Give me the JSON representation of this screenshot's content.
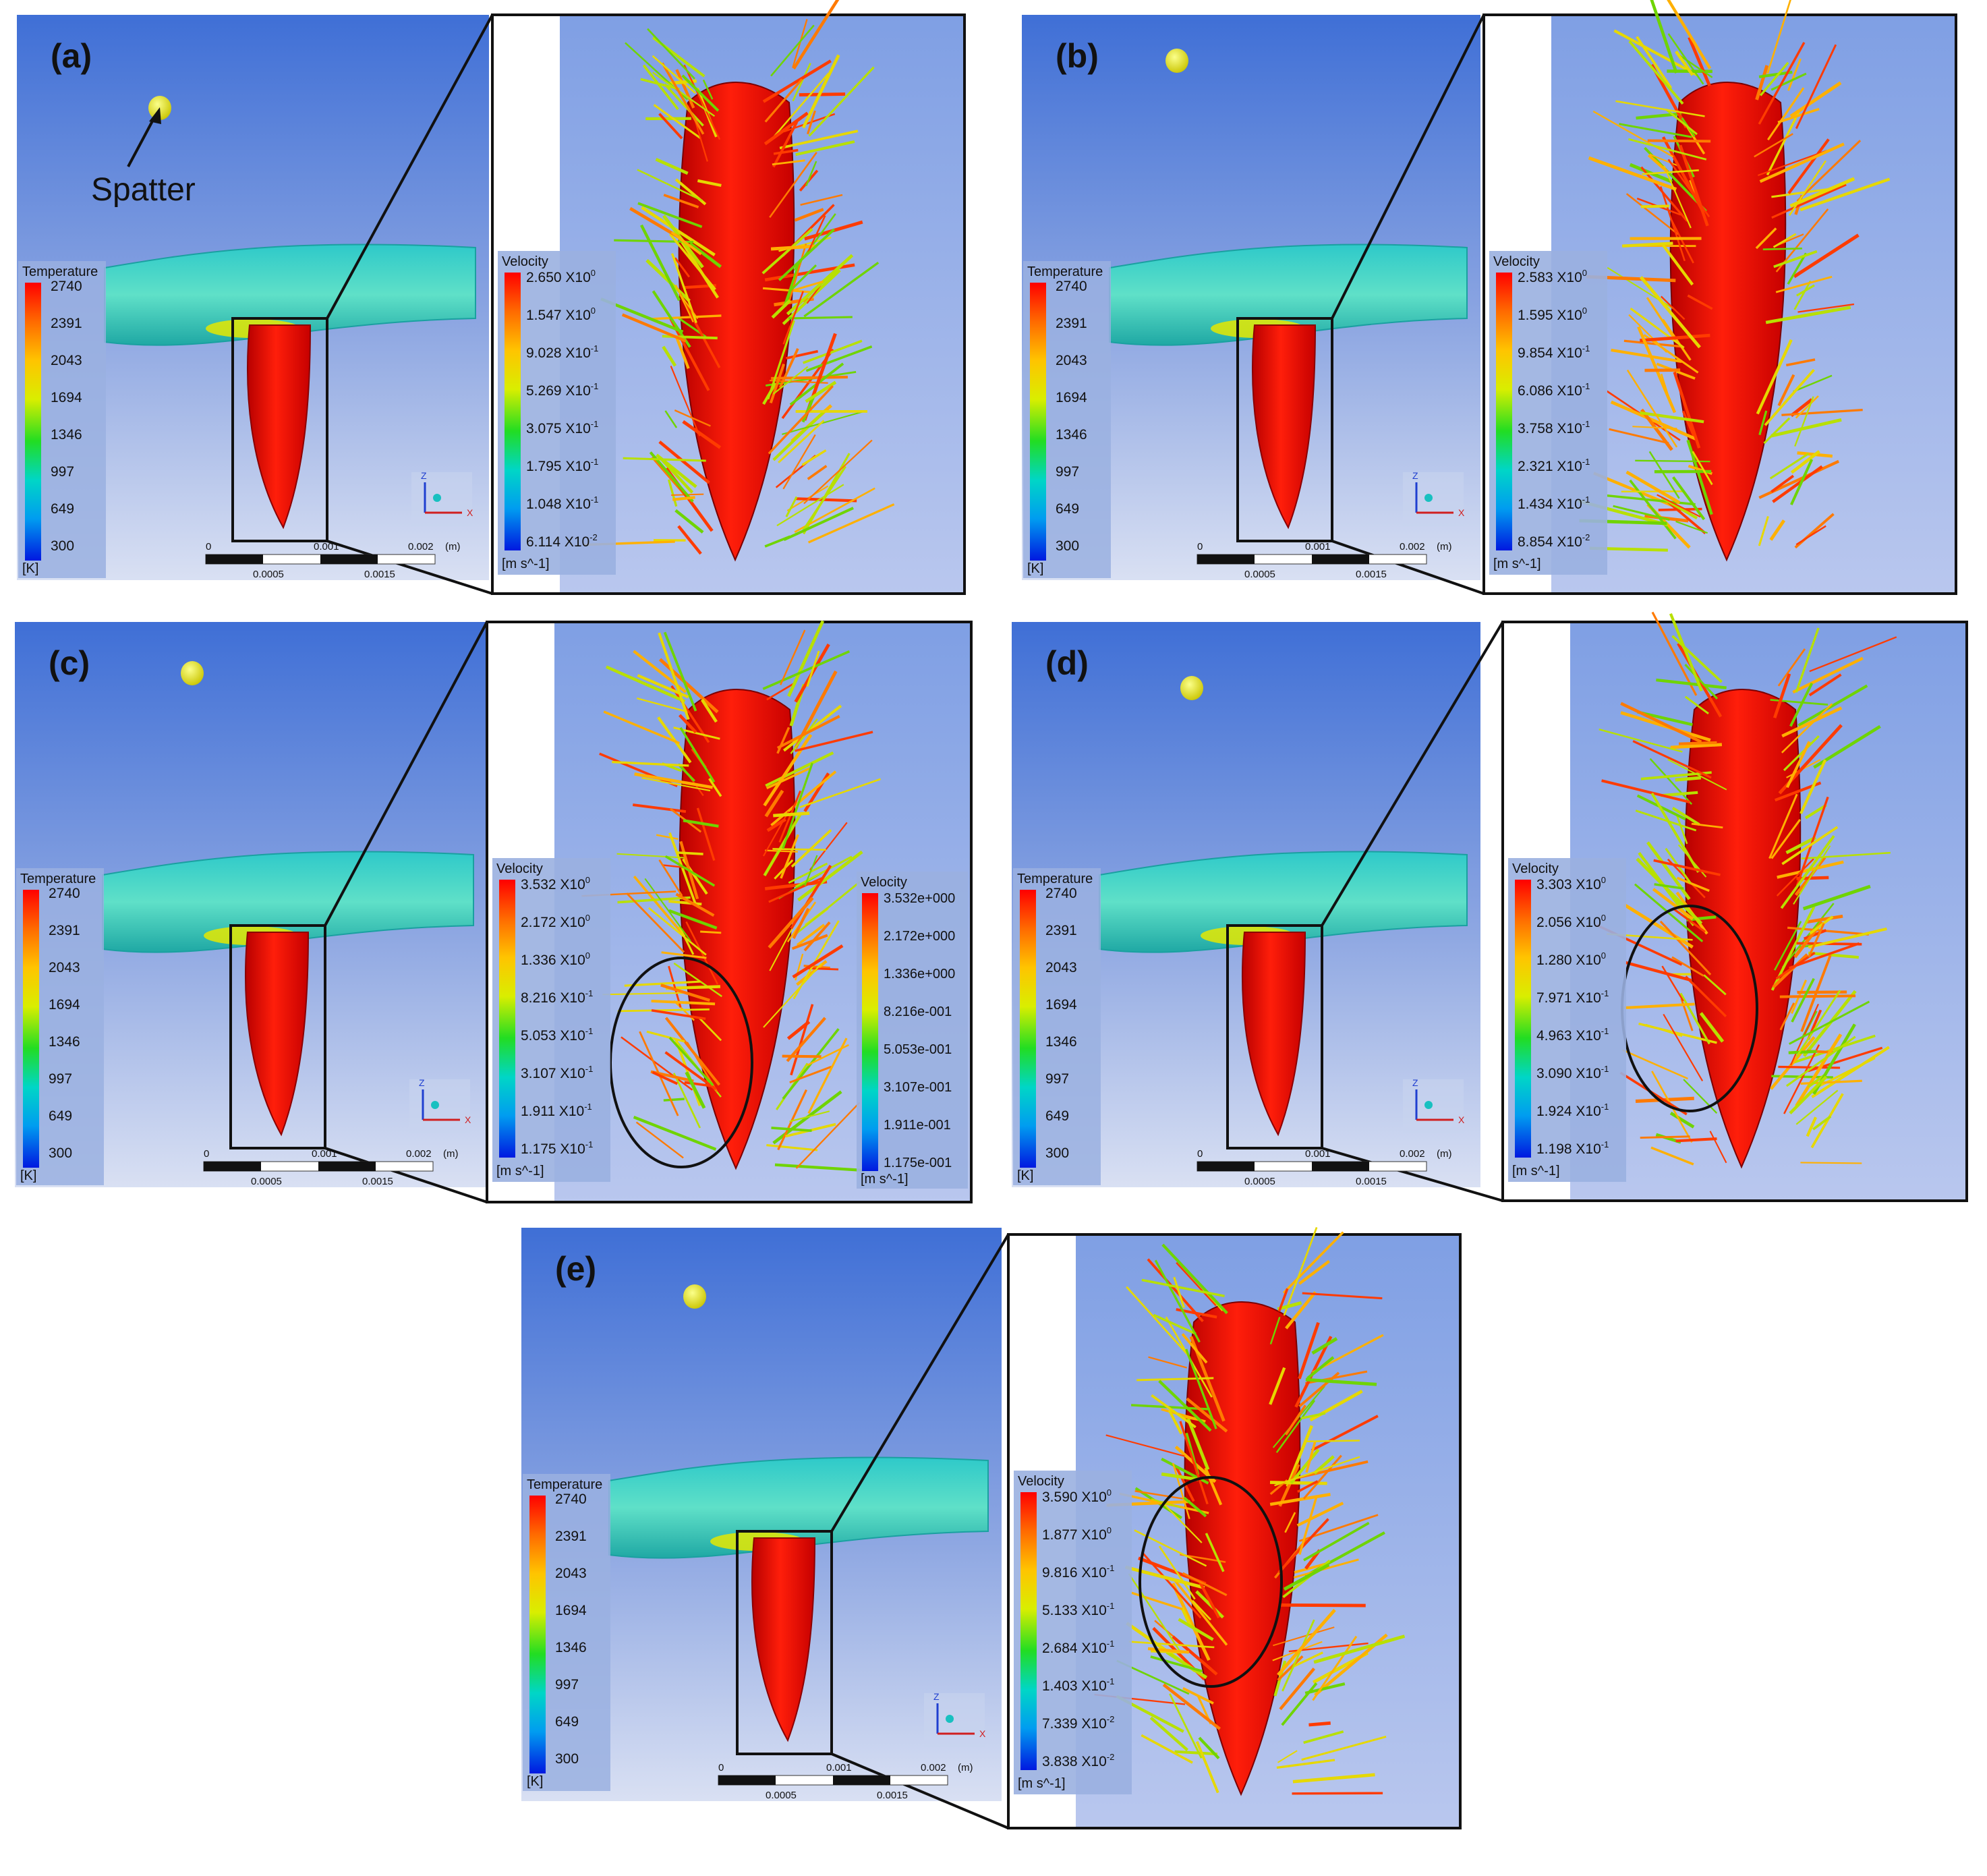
{
  "annotation": {
    "spatter_label": "Spatter"
  },
  "scale_bar": {
    "top_ticks": [
      "0",
      "0.001",
      "0.002"
    ],
    "unit": "(m)",
    "bottom_ticks": [
      "0.0005",
      "0.0015"
    ]
  },
  "axis_triad": {
    "z": "Z",
    "x": "X"
  },
  "panels": [
    {
      "id": "a",
      "label": "(a)",
      "temperature_legend": {
        "title": "Temperature",
        "ticks": [
          "2740",
          "2391",
          "2043",
          "1694",
          "1346",
          "997",
          "649",
          "300"
        ],
        "unit": "[K]"
      },
      "velocity_legend": {
        "title": "Velocity",
        "ticks": [
          {
            "m": "2.650",
            "e": "0"
          },
          {
            "m": "1.547",
            "e": "0"
          },
          {
            "m": "9.028",
            "e": "-1"
          },
          {
            "m": "5.269",
            "e": "-1"
          },
          {
            "m": "3.075",
            "e": "-1"
          },
          {
            "m": "1.795",
            "e": "-1"
          },
          {
            "m": "1.048",
            "e": "-1"
          },
          {
            "m": "6.114",
            "e": "-2"
          }
        ],
        "unit": "[m s^-1]"
      }
    },
    {
      "id": "b",
      "label": "(b)",
      "temperature_legend": {
        "title": "Temperature",
        "ticks": [
          "2740",
          "2391",
          "2043",
          "1694",
          "1346",
          "997",
          "649",
          "300"
        ],
        "unit": "[K]"
      },
      "velocity_legend": {
        "title": "Velocity",
        "ticks": [
          {
            "m": "2.583",
            "e": "0"
          },
          {
            "m": "1.595",
            "e": "0"
          },
          {
            "m": "9.854",
            "e": "-1"
          },
          {
            "m": "6.086",
            "e": "-1"
          },
          {
            "m": "3.758",
            "e": "-1"
          },
          {
            "m": "2.321",
            "e": "-1"
          },
          {
            "m": "1.434",
            "e": "-1"
          },
          {
            "m": "8.854",
            "e": "-2"
          }
        ],
        "unit": "[m s^-1]"
      }
    },
    {
      "id": "c",
      "label": "(c)",
      "temperature_legend": {
        "title": "Temperature",
        "ticks": [
          "2740",
          "2391",
          "2043",
          "1694",
          "1346",
          "997",
          "649",
          "300"
        ],
        "unit": "[K]"
      },
      "velocity_legend": {
        "title": "Velocity",
        "ticks": [
          {
            "m": "3.532",
            "e": "0"
          },
          {
            "m": "2.172",
            "e": "0"
          },
          {
            "m": "1.336",
            "e": "0"
          },
          {
            "m": "8.216",
            "e": "-1"
          },
          {
            "m": "5.053",
            "e": "-1"
          },
          {
            "m": "3.107",
            "e": "-1"
          },
          {
            "m": "1.911",
            "e": "-1"
          },
          {
            "m": "1.175",
            "e": "-1"
          }
        ],
        "unit": "[m s^-1]"
      },
      "velocity_legend_sci": {
        "title": "Velocity",
        "ticks": [
          "3.532e+000",
          "2.172e+000",
          "1.336e+000",
          "8.216e-001",
          "5.053e-001",
          "3.107e-001",
          "1.911e-001",
          "1.175e-001"
        ],
        "unit": "[m s^-1]"
      }
    },
    {
      "id": "d",
      "label": "(d)",
      "temperature_legend": {
        "title": "Temperature",
        "ticks": [
          "2740",
          "2391",
          "2043",
          "1694",
          "1346",
          "997",
          "649",
          "300"
        ],
        "unit": "[K]"
      },
      "velocity_legend": {
        "title": "Velocity",
        "ticks": [
          {
            "m": "3.303",
            "e": "0"
          },
          {
            "m": "2.056",
            "e": "0"
          },
          {
            "m": "1.280",
            "e": "0"
          },
          {
            "m": "7.971",
            "e": "-1"
          },
          {
            "m": "4.963",
            "e": "-1"
          },
          {
            "m": "3.090",
            "e": "-1"
          },
          {
            "m": "1.924",
            "e": "-1"
          },
          {
            "m": "1.198",
            "e": "-1"
          }
        ],
        "unit": "[m s^-1]"
      }
    },
    {
      "id": "e",
      "label": "(e)",
      "temperature_legend": {
        "title": "Temperature",
        "ticks": [
          "2740",
          "2391",
          "2043",
          "1694",
          "1346",
          "997",
          "649",
          "300"
        ],
        "unit": "[K]"
      },
      "velocity_legend": {
        "title": "Velocity",
        "ticks": [
          {
            "m": "3.590",
            "e": "0"
          },
          {
            "m": "1.877",
            "e": "0"
          },
          {
            "m": "9.816",
            "e": "-1"
          },
          {
            "m": "5.133",
            "e": "-1"
          },
          {
            "m": "2.684",
            "e": "-1"
          },
          {
            "m": "1.403",
            "e": "-1"
          },
          {
            "m": "7.339",
            "e": "-2"
          },
          {
            "m": "3.838",
            "e": "-2"
          }
        ],
        "unit": "[m s^-1]"
      }
    }
  ]
}
